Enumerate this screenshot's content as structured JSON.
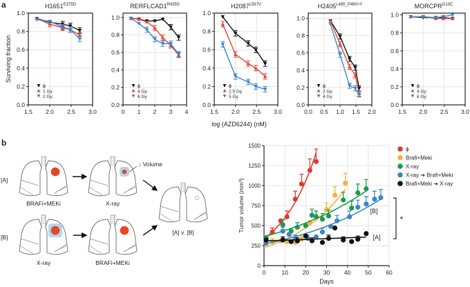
{
  "panel_labels": {
    "a": "a",
    "b": "b"
  },
  "chart_data": [
    {
      "type": "line",
      "panel": "a",
      "title": "H1651",
      "title_sup": "E375D",
      "xlim": [
        1.5,
        3.0
      ],
      "ylim": [
        0,
        1.0
      ],
      "xticks": [
        "1.5",
        "2.0",
        "2.5",
        "3.0"
      ],
      "yticks": [
        "0.0",
        "0.2",
        "0.4",
        "0.6",
        "0.8",
        "1.0"
      ],
      "ylabel": "Surviving fraction",
      "xlabel": "",
      "series": [
        {
          "name": "ϕ",
          "color": "#111111",
          "marker": "down",
          "x": [
            1.7,
            2.0,
            2.3,
            2.48,
            2.7
          ],
          "y": [
            0.94,
            0.9,
            0.88,
            0.86,
            0.81
          ]
        },
        {
          "name": "1 Gy",
          "color": "#e0443a",
          "marker": "up",
          "x": [
            1.7,
            2.0,
            2.3,
            2.48,
            2.7
          ],
          "y": [
            0.94,
            0.88,
            0.84,
            0.82,
            0.76
          ]
        },
        {
          "name": "2 Gy",
          "color": "#3a86c8",
          "marker": "down",
          "x": [
            1.7,
            2.0,
            2.3,
            2.48,
            2.7
          ],
          "y": [
            0.93,
            0.91,
            0.85,
            0.82,
            0.72
          ]
        }
      ]
    },
    {
      "type": "line",
      "panel": "a",
      "title": "RERFLCAD1",
      "title_sup": "R435S",
      "xlim": [
        0,
        4
      ],
      "ylim": [
        0,
        1.05
      ],
      "xticks": [
        "0",
        "1",
        "2",
        "3",
        "4"
      ],
      "yticks": [
        "0.0",
        "0.2",
        "0.4",
        "0.6",
        "0.8",
        "1.0"
      ],
      "ylabel": "",
      "xlabel": "",
      "series": [
        {
          "name": "ϕ",
          "color": "#111111",
          "marker": "down",
          "x": [
            0.5,
            1,
            1.5,
            2,
            2.5,
            3,
            3.5
          ],
          "y": [
            0.99,
            0.98,
            0.96,
            0.96,
            0.98,
            0.89,
            0.77
          ]
        },
        {
          "name": "4 Gy",
          "color": "#e0443a",
          "marker": "up",
          "x": [
            0.5,
            1,
            1.5,
            2,
            2.5,
            3,
            3.5
          ],
          "y": [
            0.99,
            0.98,
            0.95,
            0.88,
            0.77,
            0.68,
            0.57
          ]
        },
        {
          "name": "6 Gy",
          "color": "#3a86c8",
          "marker": "down",
          "x": [
            0.5,
            1,
            1.5,
            2,
            2.5,
            3,
            3.5
          ],
          "y": [
            0.99,
            0.93,
            0.86,
            0.75,
            0.7,
            0.7,
            0.58
          ]
        }
      ]
    },
    {
      "type": "line",
      "panel": "a",
      "title": "H2087",
      "title_sup": "L597V",
      "xlim": [
        1.5,
        3.0
      ],
      "ylim": [
        0,
        1.0
      ],
      "xticks": [
        "1.5",
        "2.0",
        "2.5",
        "3.0"
      ],
      "yticks": [
        "0.0",
        "0.2",
        "0.4",
        "0.6",
        "0.8",
        "1.0"
      ],
      "ylabel": "",
      "xlabel": "log (AZD6244) (nM)",
      "series": [
        {
          "name": "ϕ",
          "color": "#111111",
          "marker": "down",
          "x": [
            1.7,
            2.0,
            2.3,
            2.48,
            2.7
          ],
          "y": [
            0.96,
            0.78,
            0.67,
            0.6,
            0.45
          ]
        },
        {
          "name": "2.5 Gy",
          "color": "#e0443a",
          "marker": "up",
          "x": [
            1.7,
            2.0,
            2.3,
            2.48,
            2.7
          ],
          "y": [
            0.88,
            0.55,
            0.45,
            0.4,
            0.31
          ]
        },
        {
          "name": "5 Gy",
          "color": "#3a86c8",
          "marker": "down",
          "x": [
            1.7,
            2.0,
            2.3,
            2.48,
            2.7
          ],
          "y": [
            0.66,
            0.31,
            0.25,
            0.2,
            0.17
          ]
        }
      ]
    },
    {
      "type": "line",
      "panel": "a",
      "title": "H2405",
      "title_sup": "L485_P490>Y",
      "xlim": [
        0,
        2.0
      ],
      "ylim": [
        0,
        1.06
      ],
      "xticks": [
        "0.0",
        "0.5",
        "1.0",
        "1.5",
        "2.0"
      ],
      "yticks": [
        "0.0",
        "0.2",
        "0.4",
        "0.6",
        "0.8",
        "1.0"
      ],
      "ylabel": "",
      "xlabel": "",
      "series": [
        {
          "name": "ϕ",
          "color": "#111111",
          "marker": "down",
          "x": [
            0.7,
            1.0,
            1.3,
            1.48,
            1.6
          ],
          "y": [
            0.97,
            0.79,
            0.53,
            0.43,
            0.19
          ]
        },
        {
          "name": "2 Gy",
          "color": "#e0443a",
          "marker": "up",
          "x": [
            0.7,
            1.0,
            1.3,
            1.48,
            1.6
          ],
          "y": [
            0.97,
            0.7,
            0.44,
            0.34,
            0.13
          ]
        },
        {
          "name": "4 Gy",
          "color": "#3a86c8",
          "marker": "down",
          "x": [
            0.7,
            1.0,
            1.3,
            1.48,
            1.6
          ],
          "y": [
            0.93,
            0.58,
            0.22,
            0.19,
            0.12
          ]
        }
      ]
    },
    {
      "type": "line",
      "panel": "a",
      "title": "MORCPR",
      "title_sup": "G13C",
      "xlim": [
        1.5,
        3.0
      ],
      "ylim": [
        0,
        1.02
      ],
      "xticks": [
        "1.5",
        "2.0",
        "2.5",
        "3.0"
      ],
      "yticks": [
        "0.0",
        "0.2",
        "0.4",
        "0.6",
        "0.8",
        "1.0"
      ],
      "ylabel": "",
      "xlabel": "",
      "series": [
        {
          "name": "ϕ",
          "color": "#111111",
          "marker": "down",
          "x": [
            1.7,
            2.0,
            2.3,
            2.48,
            2.7
          ],
          "y": [
            0.98,
            0.97,
            0.97,
            0.97,
            0.96
          ]
        },
        {
          "name": "4 Gy",
          "color": "#e0443a",
          "marker": "up",
          "x": [
            1.7,
            2.0,
            2.3,
            2.48,
            2.7
          ],
          "y": [
            0.98,
            0.98,
            0.96,
            0.96,
            0.96
          ]
        },
        {
          "name": "6 Gy",
          "color": "#3a86c8",
          "marker": "down",
          "x": [
            1.7,
            2.0,
            2.3,
            2.48,
            2.7
          ],
          "y": [
            0.98,
            0.98,
            0.97,
            0.98,
            1.0
          ]
        }
      ]
    },
    {
      "type": "scatter",
      "panel": "b",
      "title": "",
      "xlim": [
        0,
        60
      ],
      "ylim": [
        0,
        1500
      ],
      "xticks": [
        "0",
        "10",
        "20",
        "30",
        "40",
        "50",
        "60"
      ],
      "yticks": [
        "0",
        "250",
        "500",
        "750",
        "1000",
        "1250",
        "1500"
      ],
      "xlabel": "Days",
      "ylabel": "Tumor volume (mm³)",
      "legend": "top-right",
      "annotations": {
        "B": "[B]",
        "A": "[A]",
        "significance": "*"
      },
      "series": [
        {
          "name": "ϕ",
          "color": "#e03a2f",
          "x": [
            1,
            4,
            8,
            11,
            15,
            18,
            22,
            25
          ],
          "y": [
            340,
            420,
            560,
            610,
            830,
            1020,
            1190,
            1300
          ]
        },
        {
          "name": "Brafi+Meki",
          "color": "#f7b23b",
          "x": [
            1,
            4,
            8,
            11,
            15,
            18,
            22,
            25,
            30,
            34,
            39
          ],
          "y": [
            290,
            300,
            310,
            300,
            290,
            330,
            540,
            610,
            700,
            880,
            1030
          ]
        },
        {
          "name": "X-ray",
          "color": "#1a9b50",
          "x": [
            1,
            9,
            13,
            16,
            20,
            23,
            25,
            28,
            31,
            38,
            42,
            45,
            49
          ],
          "y": [
            350,
            510,
            430,
            480,
            500,
            630,
            610,
            580,
            620,
            820,
            720,
            910,
            960
          ]
        },
        {
          "name": "X-ray ➔ Brafi+Meki",
          "color": "#3b86c6",
          "x": [
            1,
            9,
            12,
            15,
            20,
            21,
            25,
            28,
            32,
            35,
            41,
            45,
            49,
            53,
            56
          ],
          "y": [
            280,
            430,
            390,
            340,
            370,
            340,
            360,
            420,
            490,
            560,
            610,
            730,
            770,
            830,
            850
          ]
        },
        {
          "name": "Brafi+Meki ➔ X-ray",
          "color": "#111111",
          "x": [
            1,
            9,
            13,
            16,
            20,
            23,
            28,
            31,
            34,
            38,
            42,
            45,
            49
          ],
          "y": [
            320,
            320,
            300,
            310,
            370,
            310,
            290,
            340,
            470,
            320,
            300,
            330,
            400
          ]
        }
      ]
    }
  ],
  "diagram": {
    "row_A": "[A]",
    "row_B": "[B]",
    "A1": "BRAFi+MEKi",
    "A2": "X-ray",
    "B1": "X-ray",
    "B2": "BRAFi+MEKi",
    "result": "[A] v. [B]",
    "volume": "↓ Volume"
  }
}
